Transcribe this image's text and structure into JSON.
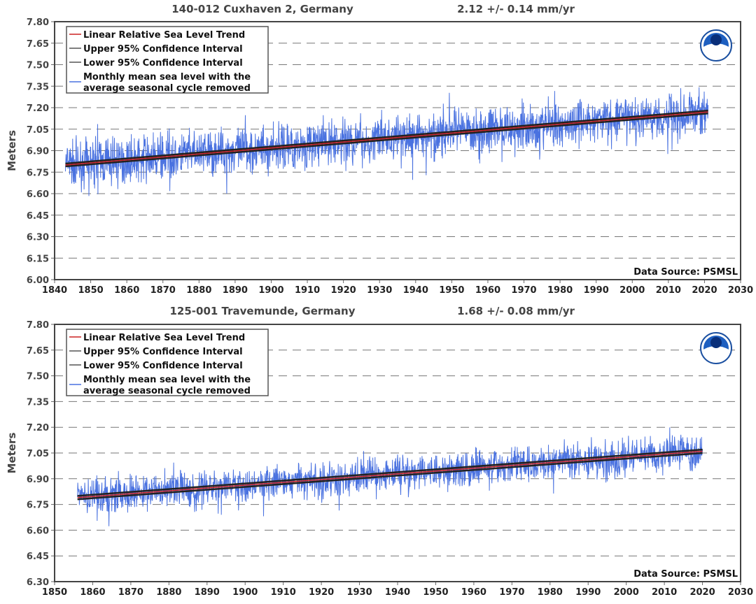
{
  "chart_data": [
    {
      "type": "line",
      "title": "140-012 Cuxhaven 2, Germany",
      "rate": "2.12 +/-  0.14 mm/yr",
      "ylabel": "Meters",
      "xlabel": "",
      "xlim": [
        1840,
        2030
      ],
      "ylim": [
        6.0,
        7.8
      ],
      "xticks": [
        "1840",
        "1850",
        "1860",
        "1870",
        "1880",
        "1890",
        "1900",
        "1910",
        "1920",
        "1930",
        "1940",
        "1950",
        "1960",
        "1970",
        "1980",
        "1990",
        "2000",
        "2010",
        "2020",
        "2030"
      ],
      "yticks": [
        "6.00",
        "6.15",
        "6.30",
        "6.45",
        "6.60",
        "6.75",
        "6.90",
        "7.05",
        "7.20",
        "7.35",
        "7.50",
        "7.65",
        "7.80"
      ],
      "grid": "horizontal dashed",
      "legend_position": "top-left",
      "legend": [
        "Linear Relative Sea Level Trend",
        "Upper 95% Confidence Interval",
        "Lower 95% Confidence Interval",
        "Monthly mean sea level with the",
        "average seasonal cycle removed"
      ],
      "source": "Data Source: PSMSL",
      "series": [
        {
          "name": "Linear Relative Sea Level Trend",
          "x": [
            1843,
            2021
          ],
          "y": [
            6.8,
            7.17
          ],
          "color": "#cc2222"
        },
        {
          "name": "Upper 95% Confidence Interval",
          "x": [
            1843,
            2021
          ],
          "y": [
            6.81,
            7.18
          ],
          "color": "#222222"
        },
        {
          "name": "Lower 95% Confidence Interval",
          "x": [
            1843,
            2021
          ],
          "y": [
            6.79,
            7.16
          ],
          "color": "#222222"
        },
        {
          "name": "Monthly mean sea level",
          "x_range": [
            1843,
            2021
          ],
          "noise_std": 0.11,
          "seed": 7,
          "color": "#4a72e0"
        }
      ]
    },
    {
      "type": "line",
      "title": "125-001 Travemunde, Germany",
      "rate": "1.68 +/-  0.08 mm/yr",
      "ylabel": "Meters",
      "xlabel": "",
      "xlim": [
        1850,
        2030
      ],
      "ylim": [
        6.3,
        7.8
      ],
      "xticks": [
        "1850",
        "1860",
        "1870",
        "1880",
        "1890",
        "1900",
        "1910",
        "1920",
        "1930",
        "1940",
        "1950",
        "1960",
        "1970",
        "1980",
        "1990",
        "2000",
        "2010",
        "2020",
        "2030"
      ],
      "yticks": [
        "6.30",
        "6.45",
        "6.60",
        "6.75",
        "6.90",
        "7.05",
        "7.20",
        "7.35",
        "7.50",
        "7.65",
        "7.80"
      ],
      "grid": "horizontal dashed",
      "legend_position": "top-left",
      "legend": [
        "Linear Relative Sea Level Trend",
        "Upper 95% Confidence Interval",
        "Lower 95% Confidence Interval",
        "Monthly mean sea level with the",
        "average seasonal cycle removed"
      ],
      "source": "Data Source: PSMSL",
      "series": [
        {
          "name": "Linear Relative Sea Level Trend",
          "x": [
            1856,
            2020
          ],
          "y": [
            6.79,
            7.06
          ],
          "color": "#cc2222"
        },
        {
          "name": "Upper 95% Confidence Interval",
          "x": [
            1856,
            2020
          ],
          "y": [
            6.8,
            7.07
          ],
          "color": "#222222"
        },
        {
          "name": "Lower 95% Confidence Interval",
          "x": [
            1856,
            2020
          ],
          "y": [
            6.78,
            7.05
          ],
          "color": "#222222"
        },
        {
          "name": "Monthly mean sea level",
          "x_range": [
            1856,
            2020
          ],
          "noise_std": 0.07,
          "seed": 13,
          "color": "#4a72e0"
        }
      ]
    }
  ]
}
